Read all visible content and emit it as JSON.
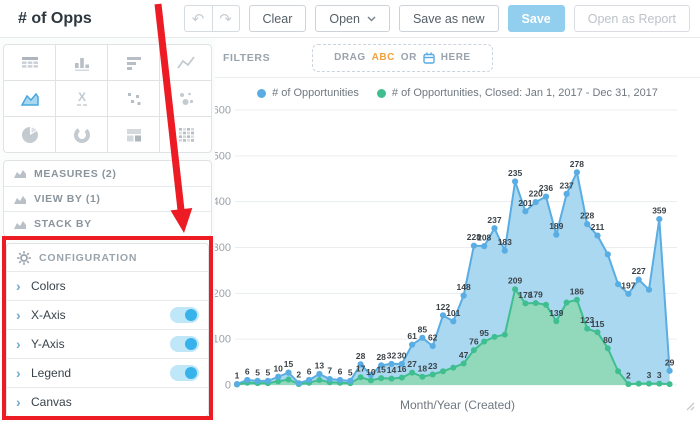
{
  "header": {
    "title": "# of Opps",
    "buttons": {
      "clear": "Clear",
      "open": "Open",
      "save_as_new": "Save as new",
      "save": "Save",
      "open_as_report": "Open as Report"
    }
  },
  "sidebar": {
    "chart_types": [
      "table",
      "column-chart",
      "bar-chart",
      "line-chart",
      "area-chart",
      "headline",
      "scatter-plot",
      "bubble-chart",
      "pie-chart",
      "donut-chart",
      "treemap",
      "heatmap"
    ],
    "selected_chart_type": "area-chart",
    "buckets": [
      "MEASURES (2)",
      "VIEW BY (1)",
      "STACK BY"
    ],
    "configuration": {
      "header": "CONFIGURATION",
      "items": [
        {
          "label": "Colors",
          "toggle": null
        },
        {
          "label": "X-Axis",
          "toggle": true
        },
        {
          "label": "Y-Axis",
          "toggle": true
        },
        {
          "label": "Legend",
          "toggle": true
        },
        {
          "label": "Canvas",
          "toggle": null
        }
      ]
    }
  },
  "filters": {
    "label": "FILTERS",
    "drop_zone": {
      "drag": "DRAG",
      "abc": "ABC",
      "or": "OR",
      "here": "HERE"
    }
  },
  "chart_data": {
    "type": "area",
    "stacked": true,
    "x_axis_title": "Month/Year (Created)",
    "ylim": [
      0,
      600
    ],
    "yticks": [
      0,
      100,
      200,
      300,
      400,
      500,
      600
    ],
    "grid": true,
    "legend_position": "top",
    "series": [
      {
        "name": "# of Opportunities",
        "line_color": "#59ADE2",
        "fill_color": "#A9D8F0",
        "values": [
          1,
          6,
          5,
          5,
          10,
          15,
          2,
          6,
          13,
          7,
          6,
          5,
          28,
          12,
          28,
          32,
          30,
          61,
          85,
          62,
          122,
          101,
          148,
          228,
          208,
          237,
          183,
          235,
          201,
          220,
          236,
          189,
          237,
          278,
          228,
          211,
          205,
          190,
          197,
          227,
          205,
          359,
          29
        ],
        "labels": [
          1,
          6,
          5,
          5,
          10,
          15,
          2,
          6,
          13,
          7,
          6,
          5,
          28,
          null,
          28,
          32,
          30,
          61,
          85,
          62,
          122,
          101,
          148,
          228,
          208,
          237,
          183,
          235,
          201,
          220,
          236,
          189,
          237,
          278,
          228,
          211,
          null,
          null,
          197,
          227,
          null,
          359,
          29
        ]
      },
      {
        "name": "# of Opportunities, Closed: Jan 1, 2017 - Dec 31, 2017",
        "line_color": "#3FBE90",
        "fill_color": "#92D8BA",
        "values": [
          1,
          5,
          4,
          4,
          8,
          12,
          2,
          5,
          11,
          6,
          5,
          4,
          17,
          10,
          15,
          14,
          16,
          27,
          18,
          23,
          30,
          38,
          47,
          76,
          95,
          105,
          110,
          209,
          178,
          179,
          175,
          139,
          180,
          186,
          123,
          115,
          80,
          30,
          2,
          3,
          3,
          3,
          2
        ],
        "labels": [
          null,
          null,
          null,
          null,
          null,
          null,
          null,
          null,
          null,
          null,
          null,
          null,
          17,
          10,
          15,
          14,
          16,
          27,
          18,
          23,
          null,
          null,
          47,
          76,
          95,
          null,
          null,
          209,
          178,
          179,
          null,
          139,
          null,
          186,
          123,
          115,
          80,
          null,
          2,
          null,
          3,
          3,
          null
        ]
      }
    ]
  },
  "colors": {
    "accent_blue": "#38B2EA",
    "save_button": "#92CEED",
    "filter_abc_orange": "#F0A23F",
    "annotation_red": "#EC1B24",
    "label_text": "#3A4247"
  }
}
